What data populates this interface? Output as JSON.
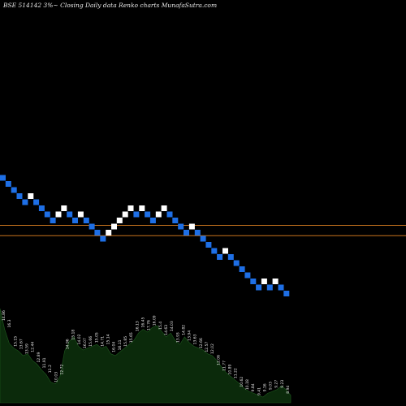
{
  "header": {
    "title": "BSE 514142  3%~  Closing Daily data  Renko  charts MunafaSutra.com"
  },
  "colors": {
    "background": "#000000",
    "brick_up": "#ffffff",
    "brick_down": "#1e6fe6",
    "reference_line": "#c8741e",
    "volume_fill": "#0b2a0b",
    "volume_label": "#e8e8e8"
  },
  "chart_data": {
    "type": "renko",
    "title": "BSE 514142  3%~  Closing Daily data  Renko  charts MunafaSutra.com",
    "brick_size_note": "3%",
    "y_axis": "brick level (count from lowest brick)",
    "grid": false,
    "reference_lines": [
      7.2,
      5.5
    ],
    "bricks": [
      {
        "level": 15,
        "dir": "down"
      },
      {
        "level": 14,
        "dir": "down"
      },
      {
        "level": 13,
        "dir": "down"
      },
      {
        "level": 12,
        "dir": "down"
      },
      {
        "level": 11,
        "dir": "down"
      },
      {
        "level": 12,
        "dir": "up"
      },
      {
        "level": 11,
        "dir": "down"
      },
      {
        "level": 10,
        "dir": "down"
      },
      {
        "level": 9,
        "dir": "down"
      },
      {
        "level": 8,
        "dir": "down"
      },
      {
        "level": 9,
        "dir": "up"
      },
      {
        "level": 10,
        "dir": "up"
      },
      {
        "level": 9,
        "dir": "down"
      },
      {
        "level": 8,
        "dir": "down"
      },
      {
        "level": 9,
        "dir": "up"
      },
      {
        "level": 8,
        "dir": "down"
      },
      {
        "level": 7,
        "dir": "down"
      },
      {
        "level": 6,
        "dir": "down"
      },
      {
        "level": 5,
        "dir": "down"
      },
      {
        "level": 6,
        "dir": "up"
      },
      {
        "level": 7,
        "dir": "up"
      },
      {
        "level": 8,
        "dir": "up"
      },
      {
        "level": 9,
        "dir": "up"
      },
      {
        "level": 10,
        "dir": "up"
      },
      {
        "level": 9,
        "dir": "down"
      },
      {
        "level": 10,
        "dir": "up"
      },
      {
        "level": 9,
        "dir": "down"
      },
      {
        "level": 8,
        "dir": "down"
      },
      {
        "level": 9,
        "dir": "up"
      },
      {
        "level": 10,
        "dir": "up"
      },
      {
        "level": 9,
        "dir": "down"
      },
      {
        "level": 8,
        "dir": "down"
      },
      {
        "level": 7,
        "dir": "down"
      },
      {
        "level": 6,
        "dir": "down"
      },
      {
        "level": 7,
        "dir": "up"
      },
      {
        "level": 6,
        "dir": "down"
      },
      {
        "level": 5,
        "dir": "down"
      },
      {
        "level": 4,
        "dir": "down"
      },
      {
        "level": 3,
        "dir": "down"
      },
      {
        "level": 2,
        "dir": "down"
      },
      {
        "level": 3,
        "dir": "up"
      },
      {
        "level": 2,
        "dir": "down"
      },
      {
        "level": 1,
        "dir": "down"
      },
      {
        "level": 0,
        "dir": "down"
      },
      {
        "level": -1,
        "dir": "down"
      },
      {
        "level": -2,
        "dir": "down"
      },
      {
        "level": -3,
        "dir": "down"
      },
      {
        "level": -2,
        "dir": "up"
      },
      {
        "level": -3,
        "dir": "down"
      },
      {
        "level": -2,
        "dir": "up"
      },
      {
        "level": -3,
        "dir": "down"
      },
      {
        "level": -4,
        "dir": "down"
      }
    ],
    "volume": [
      100,
      78,
      63,
      58,
      55,
      50,
      52,
      45,
      41,
      35,
      30,
      22,
      20,
      28,
      55,
      65,
      70,
      60,
      56,
      58,
      60,
      62,
      58,
      60,
      52,
      50,
      54,
      58,
      62,
      66,
      74,
      78,
      75,
      80,
      82,
      76,
      70,
      74,
      66,
      62,
      70,
      64,
      60,
      58,
      56,
      52,
      50,
      45,
      38,
      32,
      28,
      24,
      20,
      15,
      12,
      10,
      8,
      6,
      10,
      12,
      14,
      18,
      14,
      8
    ],
    "volume_labels": [
      "14.86",
      "16.3",
      "15.15",
      "13.67",
      "13.59",
      "12.44",
      "12.89",
      "11.91",
      "11.2",
      "10.03",
      "12.72",
      "14.96",
      "15.18",
      "14.02",
      "16.07",
      "15.66",
      "15.05",
      "14.71",
      "15.14",
      "16.04",
      "16.11",
      "15.85",
      "15.65",
      "16.13",
      "16.45",
      "17.76",
      "16.09",
      "15.4",
      "14.63",
      "14.03",
      "13.93",
      "14.82",
      "13.94",
      "13.63",
      "12.66",
      "12.57",
      "12.02",
      "12.06",
      "11.77",
      "10.89",
      "11.22",
      "10.62",
      "10.18",
      "9.84",
      "9.41",
      "9.16",
      "9.03",
      "9.27",
      "9.23",
      "8.94"
    ]
  }
}
